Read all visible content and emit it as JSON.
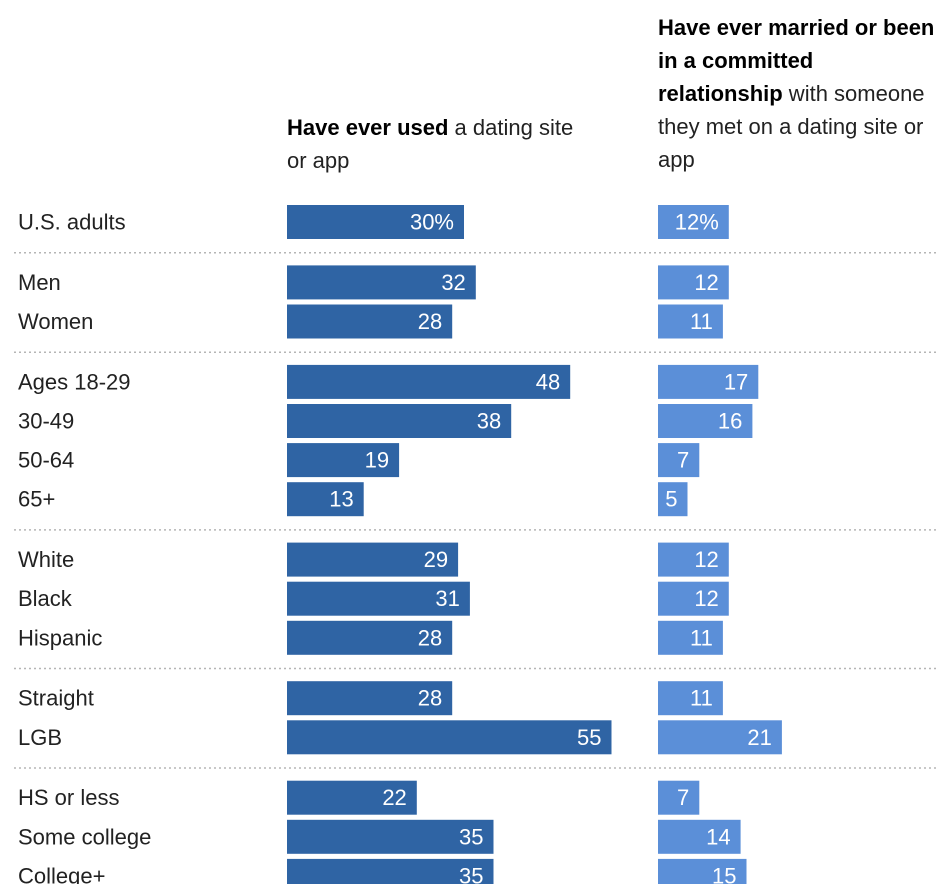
{
  "columns": [
    {
      "bold": "Have ever used",
      "rest": " a dating site or app",
      "color": "#2f64a4"
    },
    {
      "bold": "Have ever married or been in a committed relationship",
      "rest": " with someone they met on a dating site or app",
      "color": "#5b8fd8"
    }
  ],
  "chart_data": {
    "type": "bar",
    "orientation": "horizontal",
    "groups": [
      {
        "rows": [
          {
            "label": "U.S. adults",
            "a": 30,
            "b": 12,
            "a_text": "30%",
            "b_text": "12%"
          }
        ]
      },
      {
        "rows": [
          {
            "label": "Men",
            "a": 32,
            "b": 12,
            "a_text": "32",
            "b_text": "12"
          },
          {
            "label": "Women",
            "a": 28,
            "b": 11,
            "a_text": "28",
            "b_text": "11"
          }
        ]
      },
      {
        "rows": [
          {
            "label": "Ages 18-29",
            "a": 48,
            "b": 17,
            "a_text": "48",
            "b_text": "17"
          },
          {
            "label": "30-49",
            "a": 38,
            "b": 16,
            "a_text": "38",
            "b_text": "16"
          },
          {
            "label": "50-64",
            "a": 19,
            "b": 7,
            "a_text": "19",
            "b_text": "7"
          },
          {
            "label": "65+",
            "a": 13,
            "b": 5,
            "a_text": "13",
            "b_text": "5"
          }
        ]
      },
      {
        "rows": [
          {
            "label": "White",
            "a": 29,
            "b": 12,
            "a_text": "29",
            "b_text": "12"
          },
          {
            "label": "Black",
            "a": 31,
            "b": 12,
            "a_text": "31",
            "b_text": "12"
          },
          {
            "label": "Hispanic",
            "a": 28,
            "b": 11,
            "a_text": "28",
            "b_text": "11"
          }
        ]
      },
      {
        "rows": [
          {
            "label": "Straight",
            "a": 28,
            "b": 11,
            "a_text": "28",
            "b_text": "11"
          },
          {
            "label": "LGB",
            "a": 55,
            "b": 21,
            "a_text": "55",
            "b_text": "21"
          }
        ]
      },
      {
        "rows": [
          {
            "label": "HS or less",
            "a": 22,
            "b": 7,
            "a_text": "22",
            "b_text": "7"
          },
          {
            "label": "Some college",
            "a": 35,
            "b": 14,
            "a_text": "35",
            "b_text": "14"
          },
          {
            "label": "College+",
            "a": 35,
            "b": 15,
            "a_text": "35",
            "b_text": "15"
          }
        ]
      }
    ]
  }
}
